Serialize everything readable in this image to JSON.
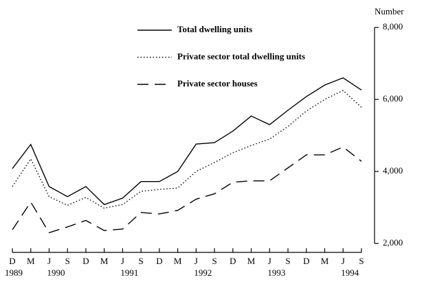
{
  "chart_data": {
    "type": "line",
    "y_axis_label": "Number",
    "categories": [
      "D",
      "M",
      "J",
      "S",
      "D",
      "M",
      "J",
      "S",
      "D",
      "M",
      "J",
      "S",
      "D",
      "M",
      "J",
      "S",
      "D",
      "M",
      "J",
      "S"
    ],
    "years": [
      "1989",
      null,
      "1990",
      null,
      null,
      null,
      "1991",
      null,
      null,
      null,
      "1992",
      null,
      null,
      null,
      "1993",
      null,
      null,
      null,
      "1994",
      null
    ],
    "series": [
      {
        "name": "Total dwelling units",
        "color": "#000000",
        "style": "solid",
        "values": [
          4080,
          4750,
          3580,
          3300,
          3580,
          3080,
          3260,
          3720,
          3720,
          4000,
          4760,
          4800,
          5120,
          5540,
          5300,
          5700,
          6080,
          6400,
          6600,
          6260
        ]
      },
      {
        "name": "Private sector total dwelling units",
        "color": "#000000",
        "style": "dotted",
        "values": [
          3580,
          4350,
          3300,
          3060,
          3280,
          2980,
          3080,
          3450,
          3500,
          3540,
          4000,
          4250,
          4520,
          4720,
          4900,
          5250,
          5680,
          6000,
          6250,
          5780
        ]
      },
      {
        "name": "Private sector houses",
        "color": "#000000",
        "style": "dashed",
        "values": [
          2380,
          3150,
          2300,
          2460,
          2640,
          2360,
          2400,
          2860,
          2820,
          2920,
          3230,
          3380,
          3700,
          3740,
          3740,
          4100,
          4460,
          4460,
          4680,
          4280
        ]
      }
    ],
    "ylim": [
      2000,
      8000
    ],
    "yticks": [
      {
        "value": 2000,
        "label": "2,000"
      },
      {
        "value": 4000,
        "label": "4,000"
      },
      {
        "value": 6000,
        "label": "6,000"
      },
      {
        "value": 8000,
        "label": "8,000"
      }
    ]
  }
}
